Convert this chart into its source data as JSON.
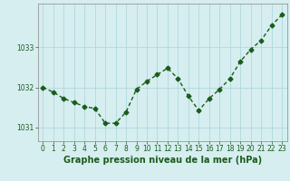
{
  "x": [
    0,
    1,
    2,
    3,
    4,
    5,
    6,
    7,
    8,
    9,
    10,
    11,
    12,
    13,
    14,
    15,
    16,
    17,
    18,
    19,
    20,
    21,
    22,
    23
  ],
  "y": [
    1032.0,
    1031.88,
    1031.72,
    1031.62,
    1031.52,
    1031.47,
    1031.1,
    1031.1,
    1031.38,
    1031.95,
    1032.15,
    1032.32,
    1032.48,
    1032.22,
    1031.78,
    1031.42,
    1031.72,
    1031.95,
    1032.22,
    1032.65,
    1032.95,
    1033.18,
    1033.55,
    1033.82
  ],
  "line_color": "#1a5c1a",
  "marker": "D",
  "marker_size": 2.5,
  "bg_color": "#d6eef0",
  "grid_color": "#b0d8dc",
  "xlabel": "Graphe pression niveau de la mer (hPa)",
  "xlabel_fontsize": 7,
  "yticks": [
    1031,
    1032,
    1033
  ],
  "ylim": [
    1030.65,
    1034.1
  ],
  "xlim": [
    -0.5,
    23.5
  ],
  "xticks": [
    0,
    1,
    2,
    3,
    4,
    5,
    6,
    7,
    8,
    9,
    10,
    11,
    12,
    13,
    14,
    15,
    16,
    17,
    18,
    19,
    20,
    21,
    22,
    23
  ],
  "tick_fontsize": 5.5,
  "line_width": 1.0
}
